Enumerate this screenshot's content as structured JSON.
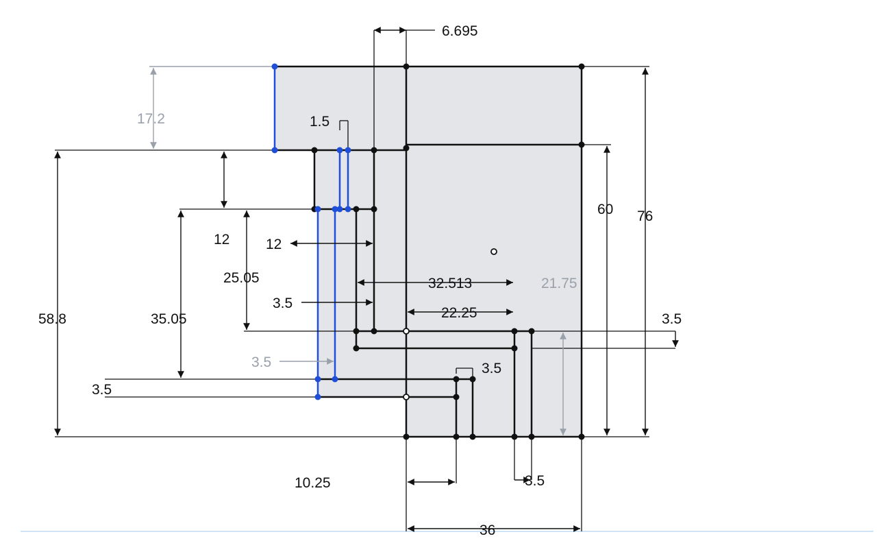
{
  "sketch": {
    "colors": {
      "region_fill": "#e3e5e8",
      "geometry": "#111111",
      "selected": "#1f4fd8",
      "driven_dimension": "#9aa1ab",
      "canvas_border": "#cfe3f7"
    },
    "dimensions": {
      "d6695": "6.695",
      "d172": "17.2",
      "d15": "1.5",
      "d12a": "12",
      "d12b": "12",
      "d2505": "25.05",
      "d3505": "35.05",
      "d588": "58.8",
      "d35_left": "3.5",
      "d35_blue": "3.5",
      "d35_far": "3.5",
      "d32513": "32.513",
      "d2225": "22.25",
      "d2175": "21.75",
      "d35_right": "3.5",
      "d35_small": "3.5",
      "d1025": "10.25",
      "d35_bottom": "3.5",
      "d36": "36",
      "d60": "60",
      "d76": "76"
    }
  }
}
